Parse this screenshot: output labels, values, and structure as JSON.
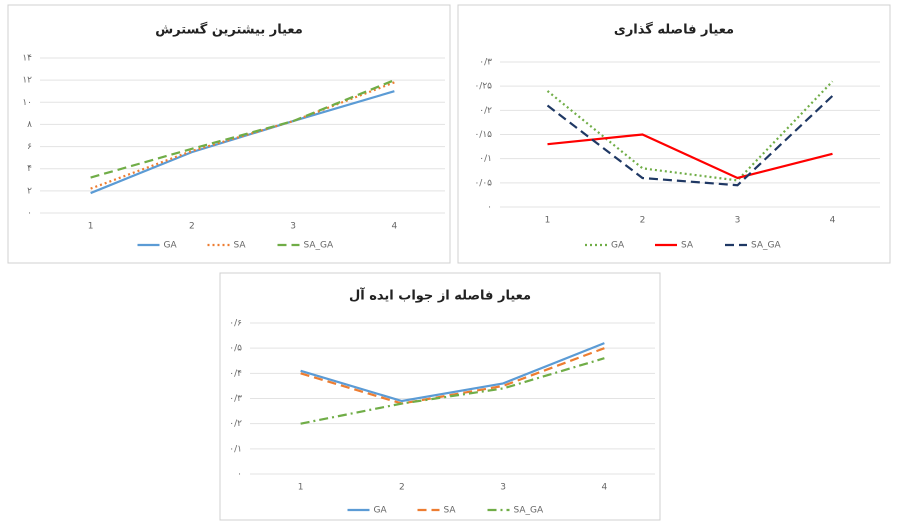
{
  "chart_data": [
    {
      "type": "line",
      "title": "معیار بیشترین گسترش",
      "categories": [
        "1",
        "2",
        "3",
        "4"
      ],
      "series": [
        {
          "name": "GA",
          "color": "#5b9bd5",
          "dash": "solid",
          "values": [
            1.8,
            5.5,
            8.3,
            11
          ]
        },
        {
          "name": "SA",
          "color": "#ed7d31",
          "dash": "dotted",
          "values": [
            2.2,
            5.6,
            8.3,
            11.8
          ]
        },
        {
          "name": "SA_GA",
          "color": "#70ad47",
          "dash": "dashed",
          "values": [
            3.2,
            5.8,
            8.3,
            12
          ]
        }
      ],
      "ylim": [
        0,
        14
      ],
      "yticks": [
        {
          "value": 0,
          "label": "۰"
        },
        {
          "value": 2,
          "label": "۲"
        },
        {
          "value": 4,
          "label": "۴"
        },
        {
          "value": 6,
          "label": "۶"
        },
        {
          "value": 8,
          "label": "۸"
        },
        {
          "value": 10,
          "label": "۱۰"
        },
        {
          "value": 12,
          "label": "۱۲"
        },
        {
          "value": 14,
          "label": "۱۴"
        }
      ],
      "grid": true
    },
    {
      "type": "line",
      "title": "معیار فاصله گذاری",
      "categories": [
        "1",
        "2",
        "3",
        "4"
      ],
      "series": [
        {
          "name": "GA",
          "color": "#70ad47",
          "dash": "dotted",
          "values": [
            0.24,
            0.08,
            0.055,
            0.26
          ]
        },
        {
          "name": "SA",
          "color": "#ff0000",
          "dash": "solid",
          "values": [
            0.13,
            0.15,
            0.06,
            0.11
          ]
        },
        {
          "name": "SA_GA",
          "color": "#1f3864",
          "dash": "dashed",
          "values": [
            0.21,
            0.06,
            0.045,
            0.23
          ]
        }
      ],
      "ylim": [
        0,
        0.3
      ],
      "yticks": [
        {
          "value": 0,
          "label": "۰"
        },
        {
          "value": 0.05,
          "label": "۰/۰۵"
        },
        {
          "value": 0.1,
          "label": "۰/۱"
        },
        {
          "value": 0.15,
          "label": "۰/۱۵"
        },
        {
          "value": 0.2,
          "label": "۰/۲"
        },
        {
          "value": 0.25,
          "label": "۰/۲۵"
        },
        {
          "value": 0.3,
          "label": "۰/۳"
        }
      ],
      "grid": true
    },
    {
      "type": "line",
      "title": "معیار فاصله از جواب ایده آل",
      "categories": [
        "1",
        "2",
        "3",
        "4"
      ],
      "series": [
        {
          "name": "GA",
          "color": "#5b9bd5",
          "dash": "solid",
          "values": [
            0.41,
            0.29,
            0.36,
            0.52
          ]
        },
        {
          "name": "SA",
          "color": "#ed7d31",
          "dash": "dashed",
          "values": [
            0.4,
            0.28,
            0.35,
            0.5
          ]
        },
        {
          "name": "SA_GA",
          "color": "#70ad47",
          "dash": "dashdot",
          "values": [
            0.2,
            0.28,
            0.34,
            0.46
          ]
        }
      ],
      "ylim": [
        0,
        0.6
      ],
      "yticks": [
        {
          "value": 0,
          "label": "۰"
        },
        {
          "value": 0.1,
          "label": "۰/۱"
        },
        {
          "value": 0.2,
          "label": "۰/۲"
        },
        {
          "value": 0.3,
          "label": "۰/۳"
        },
        {
          "value": 0.4,
          "label": "۰/۴"
        },
        {
          "value": 0.5,
          "label": "۰/۵"
        },
        {
          "value": 0.6,
          "label": "۰/۶"
        }
      ],
      "grid": true
    }
  ]
}
